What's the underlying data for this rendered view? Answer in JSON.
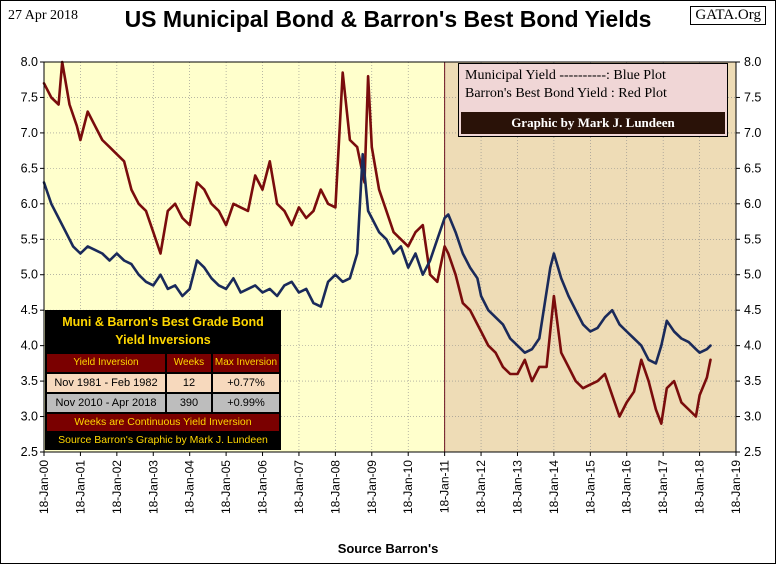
{
  "header": {
    "date": "27 Apr 2018",
    "title": "US Municipal Bond & Barron's Best Bond Yields",
    "site": "GATA.Org"
  },
  "legend": {
    "muni_label": "Municipal  Yield ----------: Blue Plot",
    "barron_label": "Barron's Best Bond  Yield : Red Plot",
    "credit": "Graphic by Mark J. Lundeen"
  },
  "inversion_table": {
    "title_line1": "Muni & Barron's Best Grade Bond",
    "title_line2": "Yield Inversions",
    "headers": [
      "Yield Inversion",
      "Weeks",
      "Max Inversion"
    ],
    "rows": [
      [
        "Nov 1981 - Feb 1982",
        "12",
        "+0.77%"
      ],
      [
        "Nov 2010 - Apr 2018",
        "390",
        "+0.99%"
      ]
    ],
    "note1": "Weeks are Continuous Yield Inversion",
    "note2": "Source Barron's Graphic by Mark J. Lundeen"
  },
  "x_caption": "Source Barron's",
  "colors": {
    "muni": "#1a2a5a",
    "barron": "#7a0c0c",
    "bg_left": "#ffffcc",
    "bg_right": "#eedcb6"
  },
  "chart_data": {
    "type": "line",
    "title": "US Municipal Bond & Barron's Best Bond Yields",
    "xlabel": "Source Barron's",
    "ylabel": "",
    "ylim": [
      2.5,
      8.0
    ],
    "xlim": [
      2000,
      2019
    ],
    "y_ticks": [
      "2.5",
      "3.0",
      "3.5",
      "4.0",
      "4.5",
      "5.0",
      "5.5",
      "6.0",
      "6.5",
      "7.0",
      "7.5",
      "8.0"
    ],
    "x_ticks": [
      "18-Jan-00",
      "18-Jan-01",
      "18-Jan-02",
      "18-Jan-03",
      "18-Jan-04",
      "18-Jan-05",
      "18-Jan-06",
      "18-Jan-07",
      "18-Jan-08",
      "18-Jan-09",
      "18-Jan-10",
      "18-Jan-11",
      "18-Jan-12",
      "18-Jan-13",
      "18-Jan-14",
      "18-Jan-15",
      "18-Jan-16",
      "18-Jan-17",
      "18-Jan-18",
      "18-Jan-19"
    ],
    "shading_split_x": 2011,
    "series": [
      {
        "name": "Municipal Yield",
        "color": "#1a2a5a",
        "x": [
          2000.0,
          2000.2,
          2000.4,
          2000.6,
          2000.8,
          2001.0,
          2001.2,
          2001.4,
          2001.6,
          2001.8,
          2002.0,
          2002.2,
          2002.4,
          2002.6,
          2002.8,
          2003.0,
          2003.2,
          2003.4,
          2003.6,
          2003.8,
          2004.0,
          2004.2,
          2004.4,
          2004.6,
          2004.8,
          2005.0,
          2005.2,
          2005.4,
          2005.6,
          2005.8,
          2006.0,
          2006.2,
          2006.4,
          2006.6,
          2006.8,
          2007.0,
          2007.2,
          2007.4,
          2007.6,
          2007.8,
          2008.0,
          2008.2,
          2008.4,
          2008.6,
          2008.75,
          2008.9,
          2009.0,
          2009.2,
          2009.4,
          2009.6,
          2009.8,
          2010.0,
          2010.2,
          2010.4,
          2010.6,
          2010.8,
          2011.0,
          2011.1,
          2011.3,
          2011.5,
          2011.7,
          2011.9,
          2012.0,
          2012.2,
          2012.4,
          2012.6,
          2012.8,
          2013.0,
          2013.2,
          2013.4,
          2013.6,
          2013.75,
          2013.9,
          2014.0,
          2014.2,
          2014.4,
          2014.6,
          2014.8,
          2015.0,
          2015.2,
          2015.4,
          2015.6,
          2015.8,
          2016.0,
          2016.2,
          2016.4,
          2016.6,
          2016.8,
          2016.95,
          2017.1,
          2017.3,
          2017.5,
          2017.7,
          2017.9,
          2018.0,
          2018.2,
          2018.3
        ],
        "values": [
          6.3,
          6.0,
          5.8,
          5.6,
          5.4,
          5.3,
          5.4,
          5.35,
          5.3,
          5.2,
          5.3,
          5.2,
          5.15,
          5.0,
          4.9,
          4.85,
          5.0,
          4.8,
          4.85,
          4.7,
          4.8,
          5.2,
          5.1,
          4.95,
          4.85,
          4.8,
          4.95,
          4.75,
          4.8,
          4.85,
          4.75,
          4.8,
          4.7,
          4.85,
          4.9,
          4.75,
          4.8,
          4.6,
          4.55,
          4.9,
          5.0,
          4.9,
          4.95,
          5.3,
          6.7,
          5.9,
          5.8,
          5.6,
          5.5,
          5.3,
          5.4,
          5.1,
          5.3,
          5.0,
          5.2,
          5.5,
          5.8,
          5.85,
          5.6,
          5.3,
          5.1,
          4.95,
          4.7,
          4.5,
          4.4,
          4.3,
          4.1,
          4.0,
          3.9,
          3.95,
          4.1,
          4.6,
          5.1,
          5.3,
          4.95,
          4.7,
          4.5,
          4.3,
          4.2,
          4.25,
          4.4,
          4.5,
          4.3,
          4.2,
          4.1,
          4.0,
          3.8,
          3.75,
          4.0,
          4.35,
          4.2,
          4.1,
          4.05,
          3.95,
          3.9,
          3.95,
          4.0
        ]
      },
      {
        "name": "Barron's Best Bond Yield",
        "color": "#7a0c0c",
        "x": [
          2000.0,
          2000.2,
          2000.4,
          2000.5,
          2000.7,
          2000.9,
          2001.0,
          2001.2,
          2001.4,
          2001.6,
          2001.8,
          2002.0,
          2002.2,
          2002.4,
          2002.6,
          2002.8,
          2003.0,
          2003.2,
          2003.4,
          2003.6,
          2003.8,
          2004.0,
          2004.2,
          2004.4,
          2004.6,
          2004.8,
          2005.0,
          2005.2,
          2005.4,
          2005.6,
          2005.8,
          2006.0,
          2006.2,
          2006.4,
          2006.6,
          2006.8,
          2007.0,
          2007.2,
          2007.4,
          2007.6,
          2007.8,
          2008.0,
          2008.2,
          2008.4,
          2008.6,
          2008.8,
          2008.9,
          2009.0,
          2009.2,
          2009.4,
          2009.6,
          2009.8,
          2010.0,
          2010.2,
          2010.4,
          2010.6,
          2010.8,
          2011.0,
          2011.1,
          2011.3,
          2011.5,
          2011.7,
          2011.9,
          2012.0,
          2012.2,
          2012.4,
          2012.6,
          2012.8,
          2013.0,
          2013.2,
          2013.4,
          2013.6,
          2013.8,
          2014.0,
          2014.2,
          2014.4,
          2014.6,
          2014.8,
          2015.0,
          2015.2,
          2015.4,
          2015.6,
          2015.8,
          2016.0,
          2016.2,
          2016.4,
          2016.6,
          2016.8,
          2016.95,
          2017.1,
          2017.3,
          2017.5,
          2017.7,
          2017.9,
          2018.0,
          2018.2,
          2018.3
        ],
        "values": [
          7.7,
          7.5,
          7.4,
          8.0,
          7.4,
          7.1,
          6.9,
          7.3,
          7.1,
          6.9,
          6.8,
          6.7,
          6.6,
          6.2,
          6.0,
          5.9,
          5.6,
          5.3,
          5.9,
          6.0,
          5.8,
          5.7,
          6.3,
          6.2,
          6.0,
          5.9,
          5.7,
          6.0,
          5.95,
          5.9,
          6.4,
          6.2,
          6.6,
          6.0,
          5.9,
          5.7,
          5.95,
          5.8,
          5.9,
          6.2,
          6.0,
          5.95,
          7.85,
          6.9,
          6.8,
          6.3,
          7.8,
          6.8,
          6.2,
          5.9,
          5.6,
          5.5,
          5.4,
          5.6,
          5.7,
          5.0,
          4.9,
          5.4,
          5.3,
          5.0,
          4.6,
          4.5,
          4.3,
          4.2,
          4.0,
          3.9,
          3.7,
          3.6,
          3.6,
          3.8,
          3.5,
          3.7,
          3.7,
          4.7,
          3.9,
          3.7,
          3.5,
          3.4,
          3.45,
          3.5,
          3.6,
          3.3,
          3.0,
          3.2,
          3.35,
          3.8,
          3.5,
          3.1,
          2.9,
          3.4,
          3.5,
          3.2,
          3.1,
          3.0,
          3.3,
          3.55,
          3.8
        ]
      }
    ]
  }
}
